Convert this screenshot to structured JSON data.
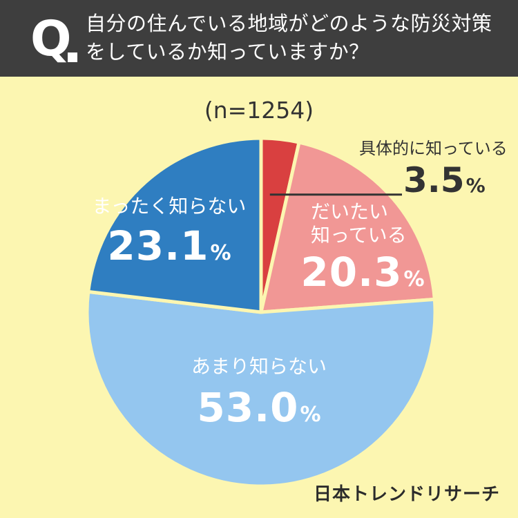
{
  "header": {
    "q_mark": "Q",
    "question": "自分の住んでいる地域がどのような防災対策をしているか知っていますか？"
  },
  "sample_size": "(n=1254)",
  "brand": "日本トレンドリサーチ",
  "colors": {
    "header_bg": "#3e3e3e",
    "background": "#fcf6b1",
    "slice_1": "#d94040",
    "slice_2": "#f19795",
    "slice_3": "#94c6ef",
    "slice_4": "#2f7ec1",
    "separator": "#fcf6b1"
  },
  "chart_data": {
    "type": "pie",
    "title": "自分の住んでいる地域がどのような防災対策をしているか知っていますか？",
    "slices": [
      {
        "label": "具体的に知っている",
        "value": 3.5,
        "value_text": "3.5",
        "unit": "%",
        "color": "#d94040"
      },
      {
        "label": "だいたい知っている",
        "value": 20.3,
        "value_text": "20.3",
        "unit": "%",
        "color": "#f19795"
      },
      {
        "label": "あまり知らない",
        "value": 53.0,
        "value_text": "53.0",
        "unit": "%",
        "color": "#94c6ef"
      },
      {
        "label": "まったく知らない",
        "value": 23.1,
        "value_text": "23.1",
        "unit": "%",
        "color": "#2f7ec1"
      }
    ],
    "start": "12 o'clock",
    "direction": "clockwise",
    "legend": "none"
  }
}
